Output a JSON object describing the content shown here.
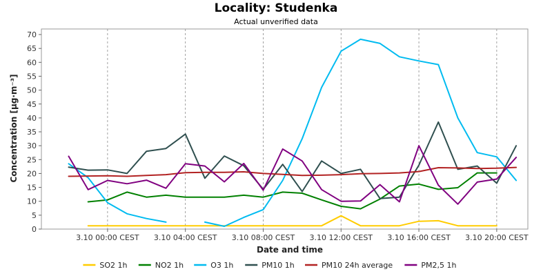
{
  "chart_data": {
    "type": "line",
    "title": "Locality: Studenka",
    "subtitle": "Actual unverified data",
    "xlabel": "Date and time",
    "ylabel": "Concentration [µg·m⁻³]",
    "ylim": [
      0,
      72
    ],
    "yticks": [
      0,
      5,
      10,
      15,
      20,
      25,
      30,
      35,
      40,
      45,
      50,
      55,
      60,
      65,
      70
    ],
    "xlim": [
      -3.4,
      21.6
    ],
    "xticks": [
      {
        "x": 0,
        "label": "3.10 00:00 CEST"
      },
      {
        "x": 4,
        "label": "3.10 04:00 CEST"
      },
      {
        "x": 8,
        "label": "3.10 08:00 CEST"
      },
      {
        "x": 12,
        "label": "3.10 12:00 CEST"
      },
      {
        "x": 16,
        "label": "3.10 16:00 CEST"
      },
      {
        "x": 20,
        "label": "3.10 20:00 CEST"
      }
    ],
    "grid": true,
    "legend_position": "bottom",
    "x": [
      -2,
      -1,
      0,
      1,
      2,
      3,
      4,
      5,
      6,
      7,
      8,
      9,
      10,
      11,
      12,
      13,
      14,
      15,
      16,
      17,
      18,
      19,
      20,
      21
    ],
    "series": [
      {
        "name": "SO2 1h",
        "color": "#ffcc00",
        "values": [
          null,
          1.2,
          1.2,
          1.2,
          1.2,
          1.2,
          1.2,
          1.2,
          1.2,
          1.2,
          1.2,
          1.2,
          1.2,
          1.2,
          4.8,
          1.2,
          1.2,
          1.2,
          2.8,
          3.0,
          1.2,
          1.2,
          1.2,
          null
        ]
      },
      {
        "name": "NO2 1h",
        "color": "#008000",
        "values": [
          null,
          9.8,
          10.5,
          13.3,
          11.5,
          12.2,
          11.5,
          11.5,
          11.5,
          12.2,
          11.5,
          13.3,
          12.9,
          10.5,
          8.2,
          7.3,
          10.8,
          15.5,
          16.2,
          14.3,
          14.9,
          20.2,
          20.2,
          null
        ]
      },
      {
        "name": "O3 1h",
        "color": "#00bbf0",
        "values": [
          23.5,
          18.5,
          9.5,
          5.5,
          3.8,
          2.5,
          null,
          2.5,
          1.0,
          4.2,
          7.0,
          17.5,
          32.5,
          51.0,
          64.0,
          68.3,
          66.8,
          62.0,
          60.5,
          59.2,
          40.0,
          27.5,
          26.0,
          17.5
        ]
      },
      {
        "name": "PM10 1h",
        "color": "#2f4f4f",
        "values": [
          22.3,
          21.2,
          21.3,
          20.0,
          28.0,
          29.0,
          34.2,
          18.3,
          26.3,
          22.8,
          14.3,
          23.3,
          13.5,
          24.5,
          20.0,
          21.5,
          11.0,
          11.5,
          23.0,
          38.5,
          21.5,
          22.7,
          16.5,
          30.0
        ]
      },
      {
        "name": "PM10 24h average",
        "color": "#b22222",
        "values": [
          19.0,
          19.1,
          19.2,
          19.0,
          19.3,
          19.6,
          20.3,
          20.4,
          20.4,
          20.6,
          20.0,
          19.7,
          19.3,
          19.4,
          19.6,
          19.9,
          20.0,
          20.2,
          20.7,
          22.1,
          22.0,
          21.8,
          21.9,
          22.2
        ]
      },
      {
        "name": "PM2,5 1h",
        "color": "#800080",
        "values": [
          26.2,
          14.2,
          17.5,
          16.3,
          17.6,
          14.7,
          23.5,
          22.7,
          17.0,
          23.6,
          14.0,
          28.8,
          24.5,
          14.2,
          10.0,
          10.1,
          16.0,
          9.8,
          30.0,
          15.8,
          9.0,
          16.9,
          18.0,
          25.8
        ]
      }
    ]
  }
}
